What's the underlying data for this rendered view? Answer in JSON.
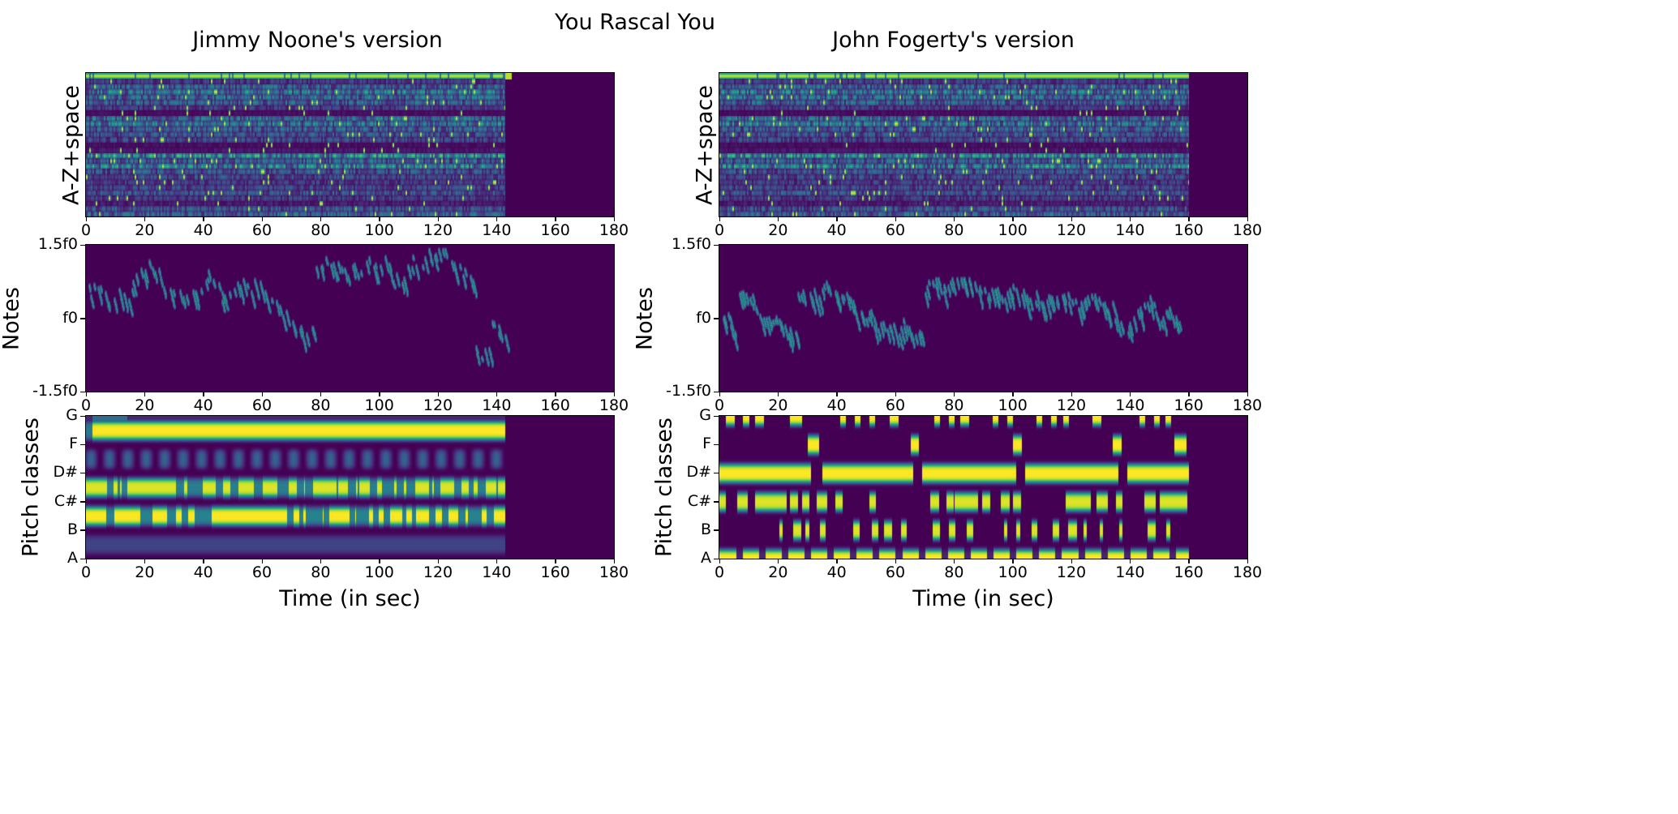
{
  "title": "You Rascal You",
  "columns": [
    "Jimmy Noone's version",
    "John Fogerty's version"
  ],
  "colormap": "viridis",
  "colors": {
    "low": "#440154",
    "mid": "#21918c",
    "high": "#fde725"
  },
  "chart_data": [
    {
      "type": "heatmap",
      "column": 0,
      "ylabel": "A-Z+space",
      "yticks": [],
      "xticks": [
        "0",
        "20",
        "40",
        "60",
        "80",
        "100",
        "120",
        "140",
        "160",
        "180"
      ],
      "xlabel": "",
      "xlim": [
        0,
        180
      ],
      "rows": 27,
      "data_end_sec": 143
    },
    {
      "type": "heatmap",
      "column": 0,
      "ylabel": "Notes",
      "yticks": [
        "1.5f0",
        "f0",
        "-1.5f0"
      ],
      "xticks": [
        "0",
        "20",
        "40",
        "60",
        "80",
        "100",
        "120",
        "140",
        "160",
        "180"
      ],
      "xlabel": "",
      "xlim": [
        0,
        180
      ],
      "data_end_sec": 143
    },
    {
      "type": "heatmap",
      "column": 0,
      "ylabel": "Pitch classes",
      "yticks": [
        "G",
        "F",
        "D#",
        "C#",
        "B",
        "A"
      ],
      "xticks": [
        "0",
        "20",
        "40",
        "60",
        "80",
        "100",
        "120",
        "140",
        "160",
        "180"
      ],
      "xlabel": "Time (in sec)",
      "xlim": [
        0,
        180
      ],
      "data_end_sec": 143,
      "dominant_pitch_classes": [
        "F#",
        "D",
        "C"
      ]
    },
    {
      "type": "heatmap",
      "column": 1,
      "ylabel": "A-Z+space",
      "yticks": [],
      "xticks": [
        "0",
        "20",
        "40",
        "60",
        "80",
        "100",
        "120",
        "140",
        "160",
        "180"
      ],
      "xlabel": "",
      "xlim": [
        0,
        180
      ],
      "rows": 27,
      "data_end_sec": 160
    },
    {
      "type": "heatmap",
      "column": 1,
      "ylabel": "Notes",
      "yticks": [
        "1.5f0",
        "f0",
        "-1.5f0"
      ],
      "xticks": [
        "0",
        "20",
        "40",
        "60",
        "80",
        "100",
        "120",
        "140",
        "160",
        "180"
      ],
      "xlabel": "",
      "xlim": [
        0,
        180
      ],
      "data_end_sec": 157
    },
    {
      "type": "heatmap",
      "column": 1,
      "ylabel": "Pitch classes",
      "yticks": [
        "G",
        "F",
        "D#",
        "C#",
        "B",
        "A"
      ],
      "xticks": [
        "0",
        "20",
        "40",
        "60",
        "80",
        "100",
        "120",
        "140",
        "160",
        "180"
      ],
      "xlabel": "Time (in sec)",
      "xlim": [
        0,
        180
      ],
      "data_end_sec": 160,
      "dominant_pitch_classes": [
        "D#",
        "A"
      ]
    }
  ]
}
